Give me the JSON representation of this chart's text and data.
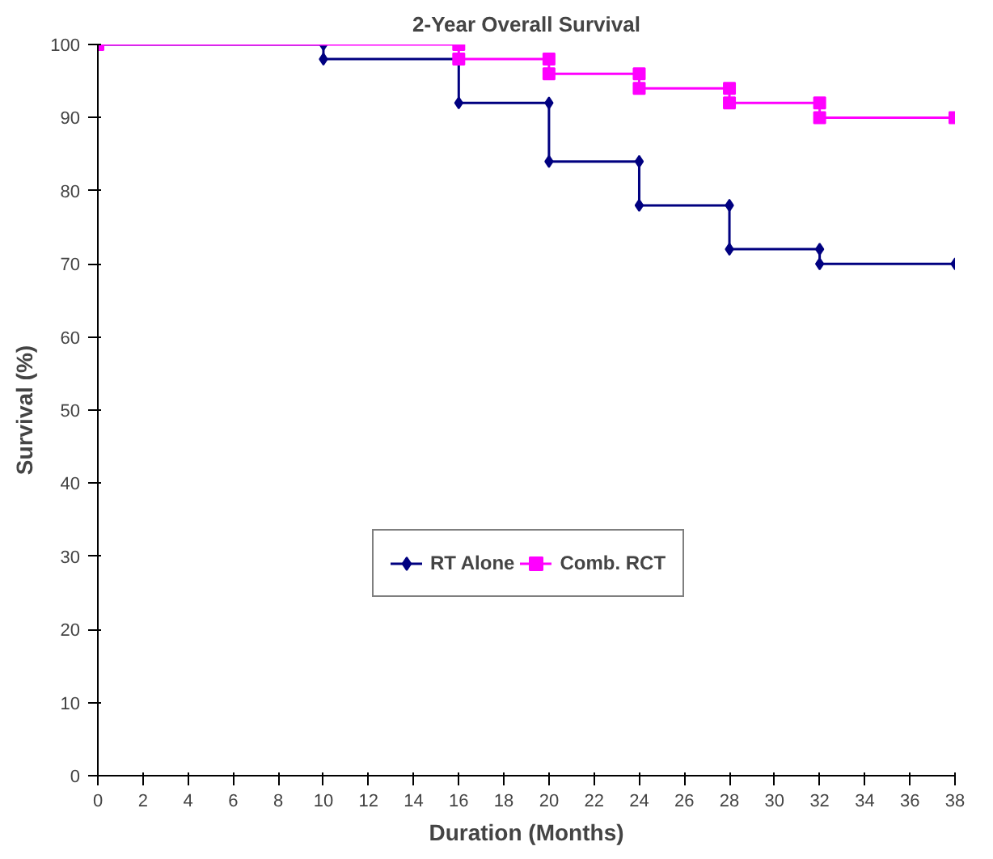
{
  "chart_data": {
    "type": "line",
    "title": "2-Year Overall Survival",
    "xlabel": "Duration (Months)",
    "ylabel": "Survival (%)",
    "series": [
      {
        "name": "RT Alone",
        "color": "#000080",
        "marker": "diamond",
        "x": [
          0,
          10,
          10,
          16,
          16,
          20,
          20,
          24,
          24,
          28,
          28,
          32,
          32,
          38
        ],
        "values": [
          100,
          100,
          98,
          98,
          92,
          92,
          84,
          84,
          78,
          78,
          72,
          72,
          70,
          70
        ]
      },
      {
        "name": "Comb. RCT",
        "color": "#ff00ff",
        "marker": "square",
        "x": [
          0,
          16,
          16,
          20,
          20,
          24,
          24,
          28,
          28,
          32,
          32,
          38
        ],
        "values": [
          100,
          100,
          98,
          98,
          96,
          96,
          94,
          94,
          92,
          92,
          90,
          90
        ]
      }
    ],
    "xlim": [
      0,
      38
    ],
    "xticks": [
      0,
      2,
      4,
      6,
      8,
      10,
      12,
      14,
      16,
      18,
      20,
      22,
      24,
      26,
      28,
      30,
      32,
      34,
      36,
      38
    ],
    "ylim": [
      0,
      100
    ],
    "yticks": [
      0,
      10,
      20,
      30,
      40,
      50,
      60,
      70,
      80,
      90,
      100
    ],
    "grid": false,
    "legend": "bottom",
    "line_style": "solid"
  }
}
